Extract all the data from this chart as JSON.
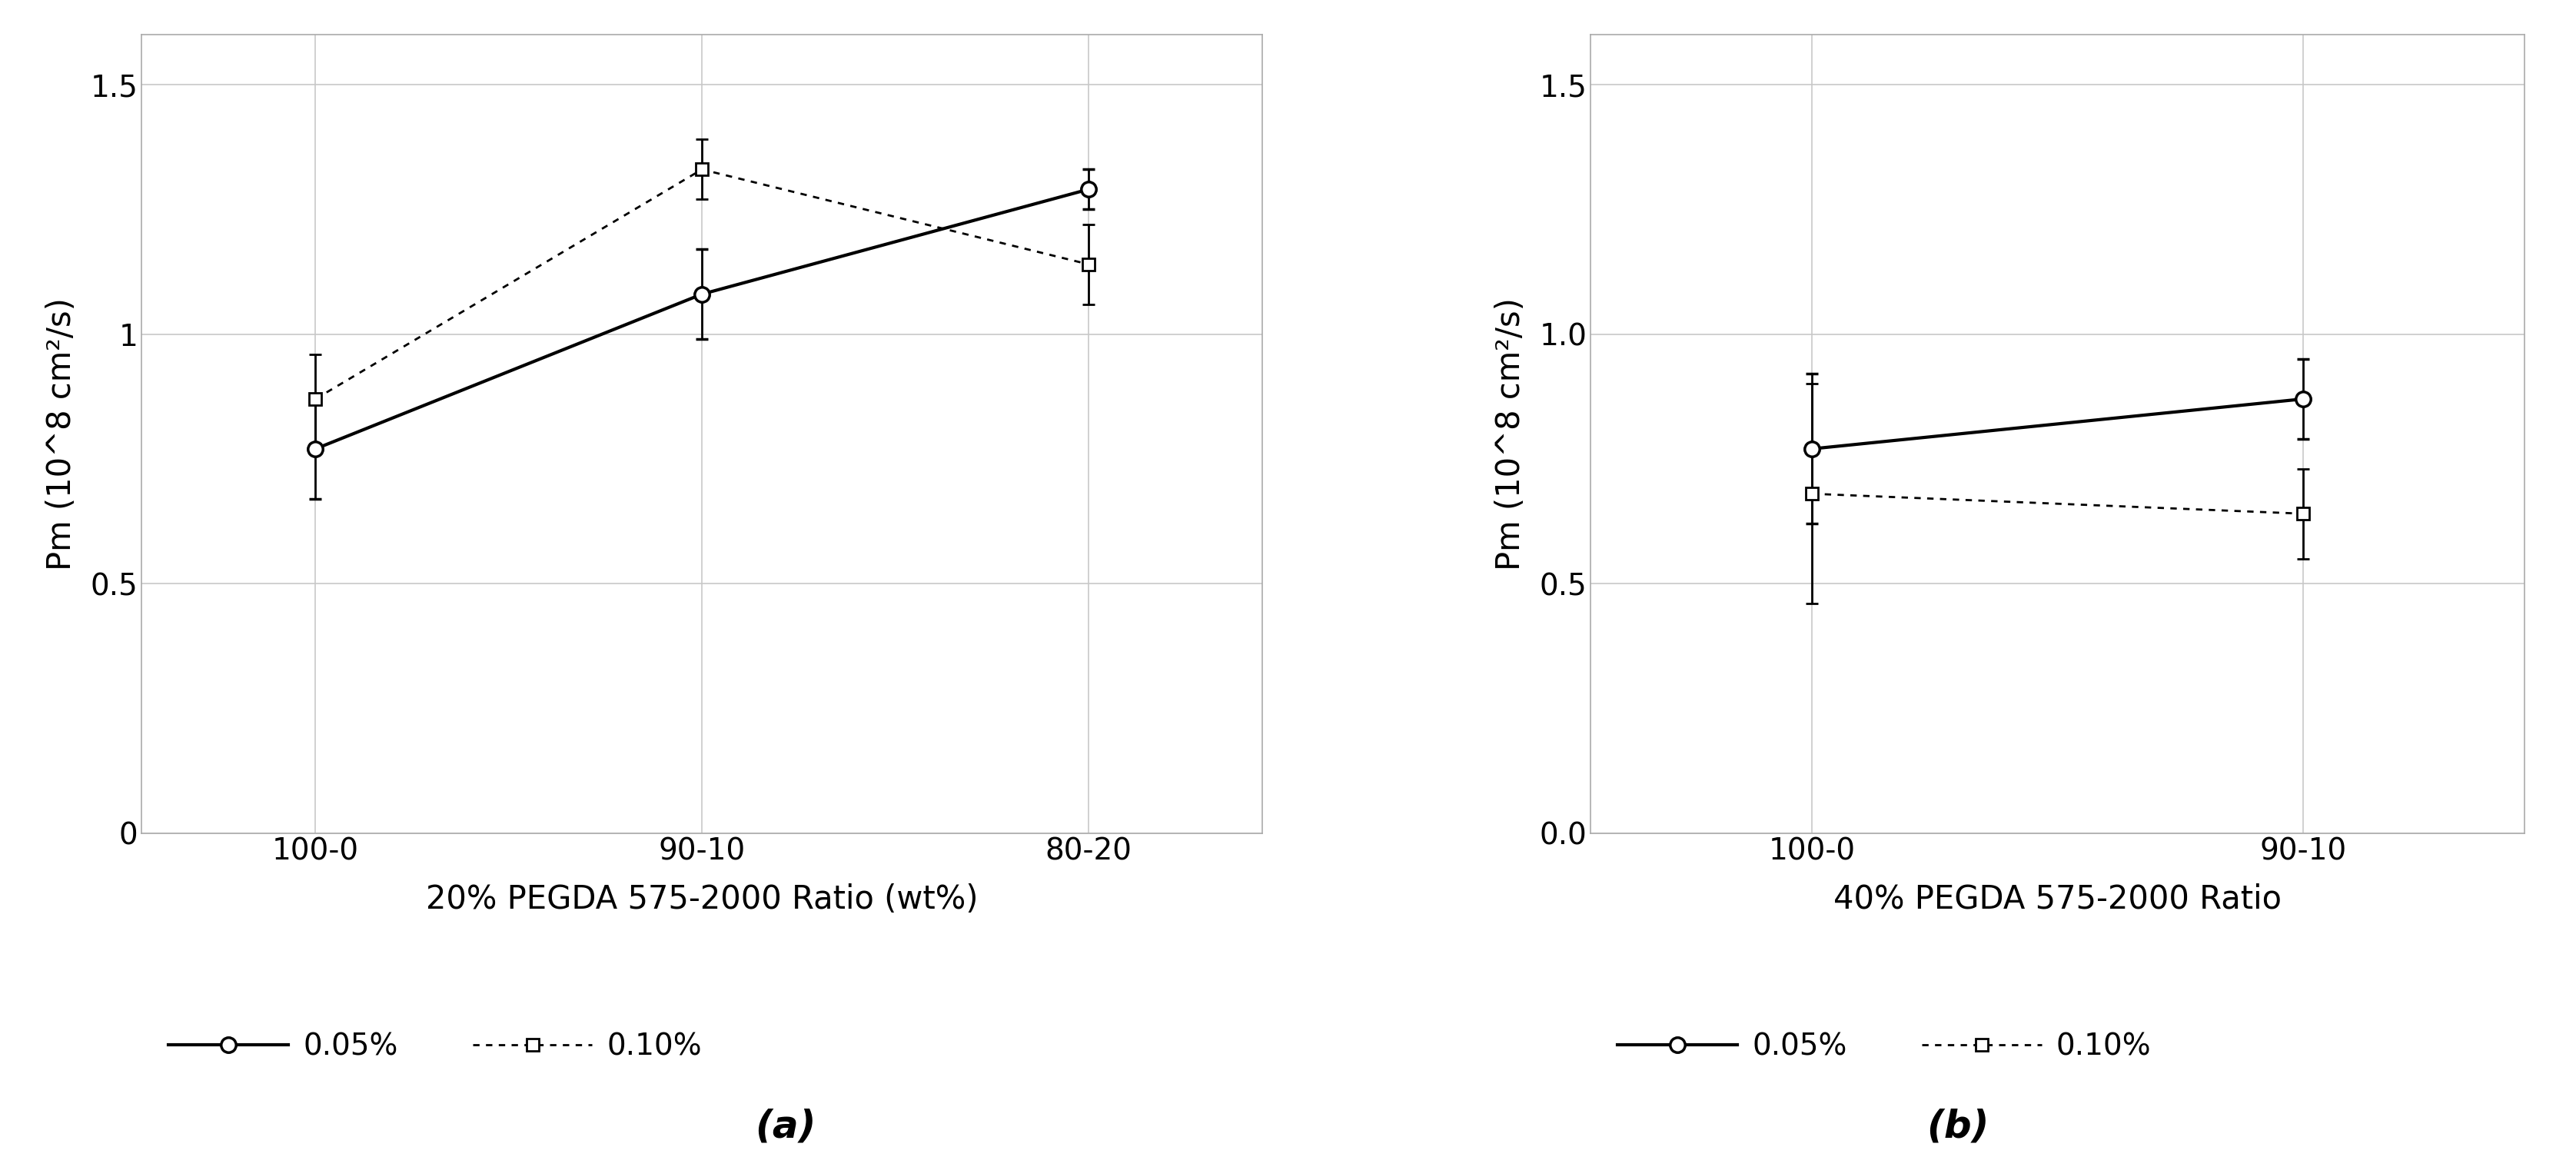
{
  "panel_a": {
    "xlabel": "20% PEGDA 575-2000 Ratio (wt%)",
    "x_labels": [
      "100-0",
      "90-10",
      "80-20"
    ],
    "x_positions": [
      0,
      1,
      2
    ],
    "series_solid": {
      "label": "0.05%",
      "y": [
        0.77,
        1.08,
        1.29
      ],
      "yerr": [
        0.1,
        0.09,
        0.04
      ]
    },
    "series_dotted": {
      "label": "0.10%",
      "y": [
        0.87,
        1.33,
        1.14
      ],
      "yerr": [
        0.09,
        0.06,
        0.08
      ]
    },
    "ylim": [
      0,
      1.6
    ],
    "yticks": [
      0,
      0.5,
      1.0,
      1.5
    ],
    "yticklabels": [
      "0",
      "0.5",
      "1",
      "1.5"
    ]
  },
  "panel_b": {
    "xlabel": "40% PEGDA 575-2000 Ratio",
    "x_labels": [
      "100-0",
      "90-10"
    ],
    "x_positions": [
      0,
      1
    ],
    "series_solid": {
      "label": "0.05%",
      "y": [
        0.77,
        0.87
      ],
      "yerr": [
        0.15,
        0.08
      ]
    },
    "series_dotted": {
      "label": "0.10%",
      "y": [
        0.68,
        0.64
      ],
      "yerr": [
        0.22,
        0.09
      ]
    },
    "ylim": [
      0.0,
      1.6
    ],
    "yticks": [
      0.0,
      0.5,
      1.0,
      1.5
    ],
    "yticklabels": [
      "0.0",
      "0.5",
      "1.0",
      "1.5"
    ]
  },
  "ylabel": "Pm (10^8 cm²/s)",
  "line_color": "#000000",
  "bg_color": "#ffffff",
  "grid_color": "#c8c8c8",
  "label_a": "(a)",
  "label_b": "(b)",
  "solid_lw": 3.0,
  "dotted_lw": 2.0,
  "marker_size_circle": 14,
  "marker_size_square": 12,
  "cap_size": 6,
  "tick_fontsize": 28,
  "label_fontsize": 30,
  "legend_fontsize": 28,
  "panel_label_fontsize": 36
}
